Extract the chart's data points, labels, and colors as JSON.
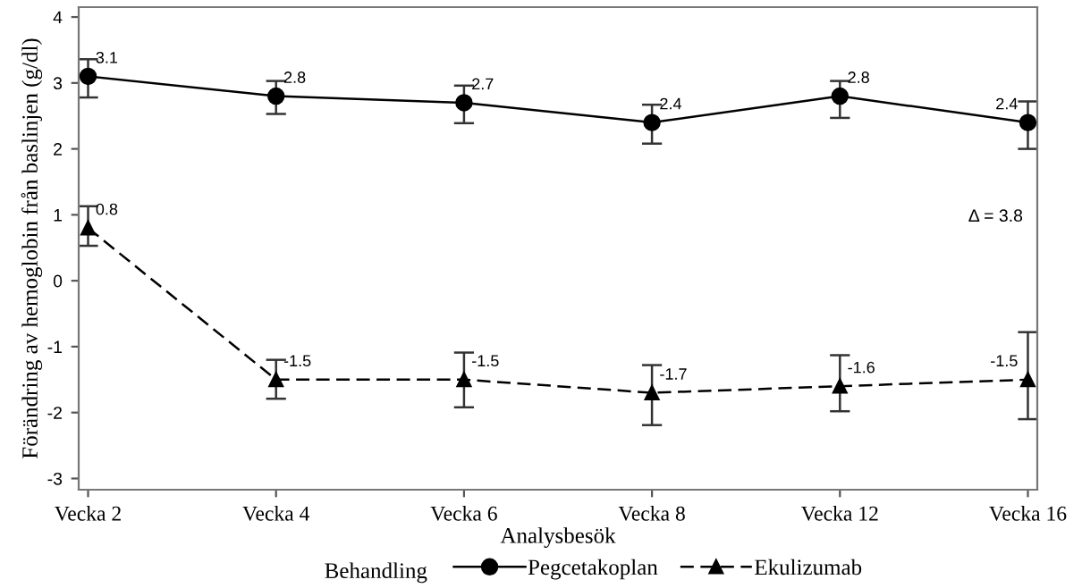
{
  "chart_data": {
    "type": "line",
    "xlabel": "Analysbesök",
    "ylabel": "Förändring av hemoglobin från baslinjen (g/dl)",
    "legend_title": "Behandling",
    "categories": [
      "Vecka 2",
      "Vecka 4",
      "Vecka 6",
      "Vecka 8",
      "Vecka 12",
      "Vecka 16"
    ],
    "ylim": [
      -3.17,
      4.15
    ],
    "yticks": [
      -3,
      -2,
      -1,
      0,
      1,
      2,
      3,
      4
    ],
    "series": [
      {
        "name": "Pegcetakoplan",
        "color": "#000000",
        "marker": "circle",
        "line_style": "solid",
        "values": [
          3.1,
          2.8,
          2.7,
          2.4,
          2.8,
          2.4
        ],
        "errors": [
          [
            2.78,
            3.36
          ],
          [
            2.53,
            3.03
          ],
          [
            2.39,
            2.96
          ],
          [
            2.08,
            2.67
          ],
          [
            2.47,
            3.03
          ],
          [
            2.0,
            2.72
          ]
        ]
      },
      {
        "name": "Ekulizumab",
        "color": "#000000",
        "marker": "triangle",
        "line_style": "dashed",
        "values": [
          0.8,
          -1.5,
          -1.5,
          -1.7,
          -1.6,
          -1.5
        ],
        "errors": [
          [
            0.53,
            1.13
          ],
          [
            -1.79,
            -1.2
          ],
          [
            -1.92,
            -1.09
          ],
          [
            -2.19,
            -1.28
          ],
          [
            -1.98,
            -1.13
          ],
          [
            -2.1,
            -0.78
          ]
        ]
      }
    ],
    "data_labels": true,
    "annotations": [
      "Δ = 3.8"
    ],
    "legend": "bottom",
    "grid": false
  }
}
